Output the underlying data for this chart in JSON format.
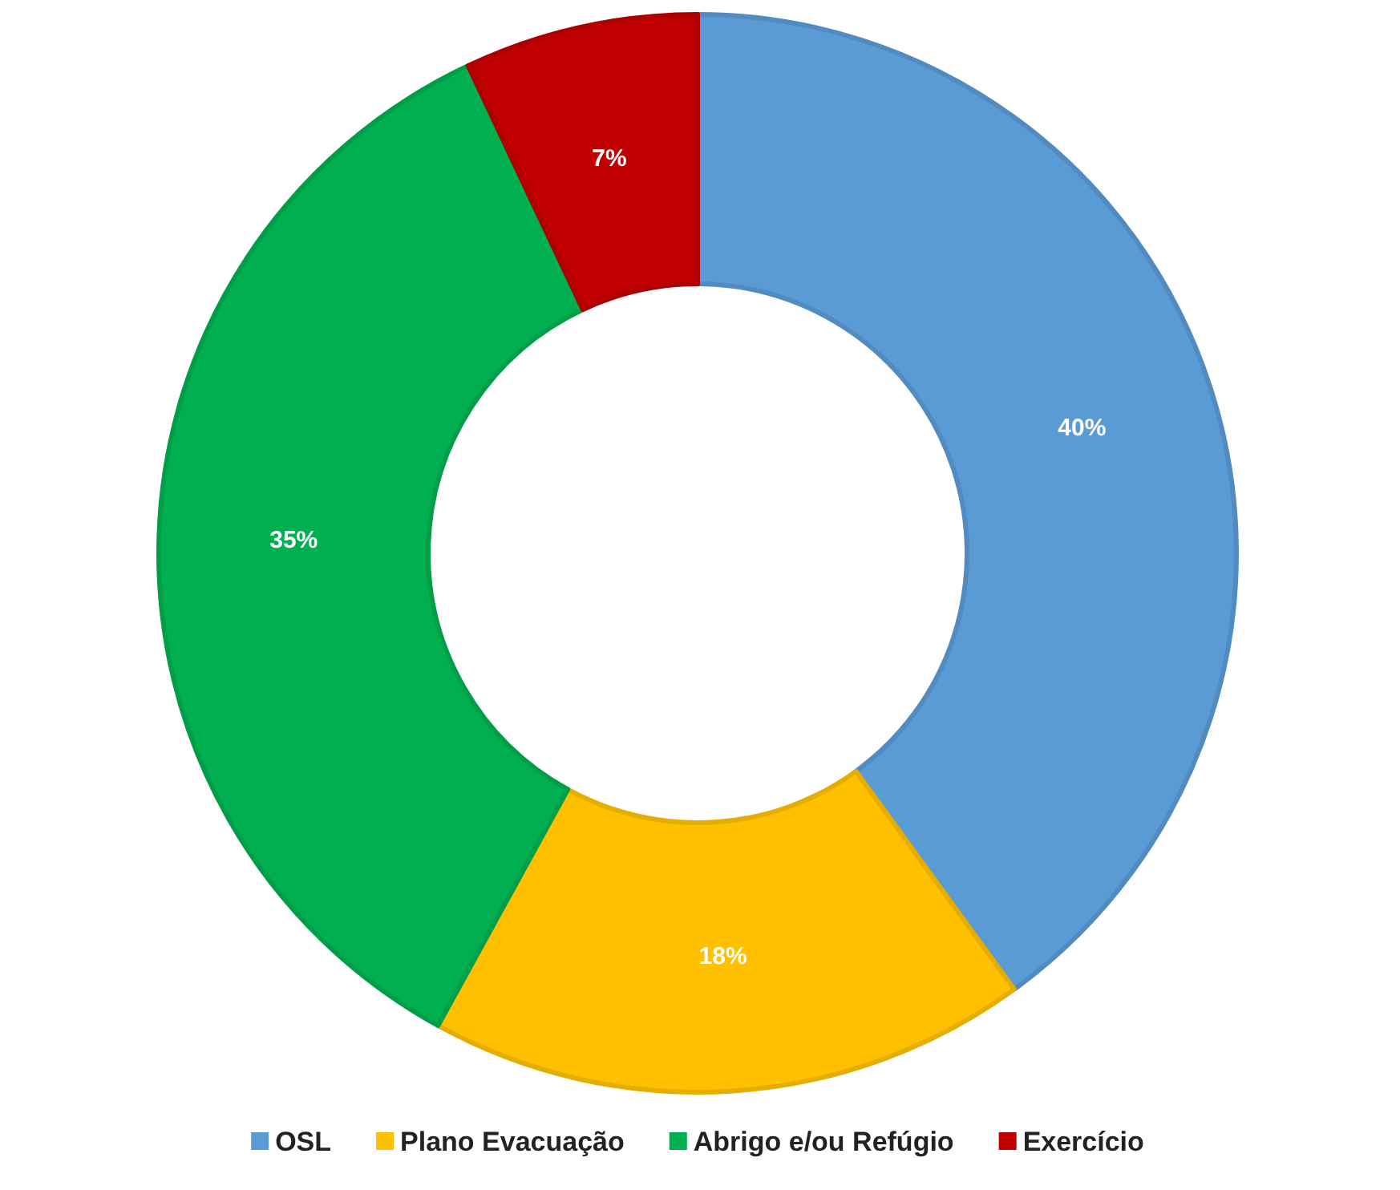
{
  "chart_data": {
    "type": "donut",
    "categories": [
      "OSL",
      "Plano Evacuação",
      "Abrigo e/ou Refúgio",
      "Exercício"
    ],
    "values": [
      40,
      18,
      35,
      7
    ],
    "colors": [
      "#5b9bd5",
      "#ffc000",
      "#00b050",
      "#c00000"
    ],
    "value_labels": [
      "40%",
      "18%",
      "35%",
      "7%"
    ],
    "legend": "bottom"
  }
}
